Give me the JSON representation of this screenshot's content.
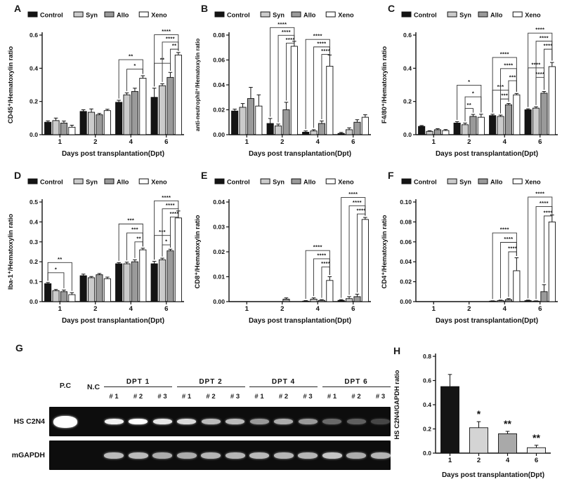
{
  "series_legend": [
    {
      "label": "Control",
      "fill": "#141414"
    },
    {
      "label": "Syn",
      "fill": "#cbcbcb"
    },
    {
      "label": "Allo",
      "fill": "#9a9a9a"
    },
    {
      "label": "Xeno",
      "fill": "#ffffff"
    }
  ],
  "chart_data": [
    {
      "id": "A",
      "letter": "A",
      "type": "bar",
      "title": "",
      "ylabel": "CD45⁺/Hematoxylin ratio",
      "xlabel": "Days post transplantation(Dpt)",
      "categories": [
        "1",
        "2",
        "4",
        "6"
      ],
      "ylim": [
        0,
        0.6
      ],
      "yticks": [
        0,
        0.2,
        0.4,
        0.6
      ],
      "ytick_labels": [
        "0.0",
        "0.2",
        "0.4",
        "0.6"
      ],
      "legend_position": "top",
      "grid": false,
      "series": [
        {
          "name": "Control",
          "values": [
            0.075,
            0.14,
            0.195,
            0.225
          ],
          "errors": [
            0.008,
            0.01,
            0.012,
            0.055
          ]
        },
        {
          "name": "Syn",
          "values": [
            0.085,
            0.135,
            0.24,
            0.295
          ],
          "errors": [
            0.015,
            0.02,
            0.012,
            0.012
          ]
        },
        {
          "name": "Allo",
          "values": [
            0.07,
            0.12,
            0.26,
            0.345
          ],
          "errors": [
            0.012,
            0.008,
            0.02,
            0.03
          ]
        },
        {
          "name": "Xeno",
          "values": [
            0.045,
            0.145,
            0.34,
            0.48
          ],
          "errors": [
            0.012,
            0.008,
            0.015,
            0.015
          ]
        }
      ],
      "significance": [
        {
          "day": 2,
          "from": 1,
          "to": 3,
          "y": 0.395,
          "label": "*"
        },
        {
          "day": 2,
          "from": 0,
          "to": 3,
          "y": 0.452,
          "label": "**"
        },
        {
          "day": 3,
          "from": 0,
          "to": 2,
          "y": 0.43,
          "label": "**"
        },
        {
          "day": 3,
          "from": 2,
          "to": 3,
          "y": 0.515,
          "label": "**"
        },
        {
          "day": 3,
          "from": 1,
          "to": 3,
          "y": 0.558,
          "label": "****"
        },
        {
          "day": 3,
          "from": 0,
          "to": 3,
          "y": 0.602,
          "label": "****"
        }
      ]
    },
    {
      "id": "B",
      "letter": "B",
      "type": "bar",
      "title": "",
      "ylabel": "anti-neutrophil⁺/Hematoxylin ratio",
      "xlabel": "Days post transplantation(Dpt)",
      "categories": [
        "1",
        "2",
        "4",
        "6"
      ],
      "ylim": [
        0,
        0.08
      ],
      "yticks": [
        0,
        0.02,
        0.04,
        0.06,
        0.08
      ],
      "ytick_labels": [
        "0.00",
        "0.02",
        "0.04",
        "0.06",
        "0.08"
      ],
      "legend_position": "top",
      "grid": false,
      "series": [
        {
          "name": "Control",
          "values": [
            0.019,
            0.009,
            0.002,
            0.001
          ],
          "errors": [
            0.0015,
            0.004,
            0.001,
            0.0008
          ]
        },
        {
          "name": "Syn",
          "values": [
            0.022,
            0.007,
            0.003,
            0.004
          ],
          "errors": [
            0.003,
            0.0015,
            0.001,
            0.0015
          ]
        },
        {
          "name": "Allo",
          "values": [
            0.029,
            0.02,
            0.009,
            0.01
          ],
          "errors": [
            0.009,
            0.006,
            0.002,
            0.002
          ]
        },
        {
          "name": "Xeno",
          "values": [
            0.023,
            0.071,
            0.055,
            0.014
          ],
          "errors": [
            0.009,
            0.004,
            0.009,
            0.002
          ]
        }
      ],
      "significance": [
        {
          "day": 1,
          "from": 2,
          "to": 3,
          "y": 0.0735,
          "label": "****"
        },
        {
          "day": 1,
          "from": 1,
          "to": 3,
          "y": 0.0798,
          "label": "****"
        },
        {
          "day": 1,
          "from": 0,
          "to": 3,
          "y": 0.086,
          "label": "****"
        },
        {
          "day": 2,
          "from": 2,
          "to": 3,
          "y": 0.0645,
          "label": "****"
        },
        {
          "day": 2,
          "from": 1,
          "to": 3,
          "y": 0.0705,
          "label": "****"
        },
        {
          "day": 2,
          "from": 0,
          "to": 3,
          "y": 0.0765,
          "label": "****"
        }
      ]
    },
    {
      "id": "C",
      "letter": "C",
      "type": "bar",
      "title": "",
      "ylabel": "F4/80⁺/Hematoxylin ratio",
      "xlabel": "Days post transplantation(Dpt)",
      "categories": [
        "1",
        "2",
        "4",
        "6"
      ],
      "ylim": [
        0,
        0.6
      ],
      "yticks": [
        0,
        0.2,
        0.4,
        0.6
      ],
      "ytick_labels": [
        "0.0",
        "0.2",
        "0.4",
        "0.6"
      ],
      "legend_position": "top",
      "grid": false,
      "series": [
        {
          "name": "Control",
          "values": [
            0.05,
            0.07,
            0.115,
            0.15
          ],
          "errors": [
            0.005,
            0.008,
            0.008,
            0.006
          ]
        },
        {
          "name": "Syn",
          "values": [
            0.02,
            0.06,
            0.11,
            0.16
          ],
          "errors": [
            0.004,
            0.01,
            0.008,
            0.008
          ]
        },
        {
          "name": "Allo",
          "values": [
            0.03,
            0.11,
            0.18,
            0.25
          ],
          "errors": [
            0.006,
            0.012,
            0.008,
            0.01
          ]
        },
        {
          "name": "Xeno",
          "values": [
            0.025,
            0.105,
            0.24,
            0.41
          ],
          "errors": [
            0.006,
            0.018,
            0.008,
            0.025
          ]
        }
      ],
      "significance": [
        {
          "day": 1,
          "from": 1,
          "to": 2,
          "y": 0.158,
          "label": "**"
        },
        {
          "day": 1,
          "from": 1,
          "to": 3,
          "y": 0.228,
          "label": "*"
        },
        {
          "day": 1,
          "from": 0,
          "to": 3,
          "y": 0.298,
          "label": "*"
        },
        {
          "day": 2,
          "from": 1,
          "to": 2,
          "y": 0.215,
          "label": "***"
        },
        {
          "day": 2,
          "from": 0,
          "to": 2,
          "y": 0.268,
          "label": "***"
        },
        {
          "day": 2,
          "from": 2,
          "to": 3,
          "y": 0.325,
          "label": "***"
        },
        {
          "day": 2,
          "from": 1,
          "to": 3,
          "y": 0.398,
          "label": "****"
        },
        {
          "day": 2,
          "from": 0,
          "to": 3,
          "y": 0.465,
          "label": "****"
        },
        {
          "day": 3,
          "from": 1,
          "to": 2,
          "y": 0.345,
          "label": "****"
        },
        {
          "day": 3,
          "from": 0,
          "to": 2,
          "y": 0.402,
          "label": "****"
        },
        {
          "day": 3,
          "from": 2,
          "to": 3,
          "y": 0.515,
          "label": "****"
        },
        {
          "day": 3,
          "from": 1,
          "to": 3,
          "y": 0.563,
          "label": "****"
        },
        {
          "day": 3,
          "from": 0,
          "to": 3,
          "y": 0.612,
          "label": "****"
        }
      ]
    },
    {
      "id": "D",
      "letter": "D",
      "type": "bar",
      "title": "",
      "ylabel": "Iba-1⁺/Hematoxylin ratio",
      "xlabel": "Days post transplantation(Dpt)",
      "categories": [
        "1",
        "2",
        "4",
        "6"
      ],
      "ylim": [
        0,
        0.5
      ],
      "yticks": [
        0,
        0.1,
        0.2,
        0.3,
        0.4,
        0.5
      ],
      "ytick_labels": [
        "0.0",
        "0.1",
        "0.2",
        "0.3",
        "0.4",
        "0.5"
      ],
      "legend_position": "top",
      "grid": false,
      "series": [
        {
          "name": "Control",
          "values": [
            0.09,
            0.13,
            0.19,
            0.19
          ],
          "errors": [
            0.006,
            0.008,
            0.006,
            0.012
          ]
        },
        {
          "name": "Syn",
          "values": [
            0.055,
            0.12,
            0.19,
            0.21
          ],
          "errors": [
            0.006,
            0.006,
            0.008,
            0.008
          ]
        },
        {
          "name": "Allo",
          "values": [
            0.05,
            0.135,
            0.2,
            0.255
          ],
          "errors": [
            0.008,
            0.006,
            0.01,
            0.008
          ]
        },
        {
          "name": "Xeno",
          "values": [
            0.035,
            0.115,
            0.26,
            0.42
          ],
          "errors": [
            0.01,
            0.008,
            0.008,
            0.035
          ]
        }
      ],
      "significance": [
        {
          "day": 0,
          "from": 0,
          "to": 2,
          "y": 0.145,
          "label": "*"
        },
        {
          "day": 0,
          "from": 0,
          "to": 3,
          "y": 0.196,
          "label": "**"
        },
        {
          "day": 2,
          "from": 2,
          "to": 3,
          "y": 0.3,
          "label": "**"
        },
        {
          "day": 2,
          "from": 1,
          "to": 3,
          "y": 0.345,
          "label": "***"
        },
        {
          "day": 2,
          "from": 0,
          "to": 3,
          "y": 0.39,
          "label": "***"
        },
        {
          "day": 3,
          "from": 1,
          "to": 2,
          "y": 0.285,
          "label": "*"
        },
        {
          "day": 3,
          "from": 0,
          "to": 2,
          "y": 0.332,
          "label": "***"
        },
        {
          "day": 3,
          "from": 2,
          "to": 3,
          "y": 0.425,
          "label": "****"
        },
        {
          "day": 3,
          "from": 1,
          "to": 3,
          "y": 0.466,
          "label": "****"
        },
        {
          "day": 3,
          "from": 0,
          "to": 3,
          "y": 0.506,
          "label": "****"
        }
      ]
    },
    {
      "id": "E",
      "letter": "E",
      "type": "bar",
      "title": "",
      "ylabel": "CD8⁺/Hematoxylin ratio",
      "xlabel": "Days post transplantation(Dpt)",
      "categories": [
        "1",
        "2",
        "4",
        "6"
      ],
      "ylim": [
        0,
        0.04
      ],
      "yticks": [
        0,
        0.01,
        0.02,
        0.03,
        0.04
      ],
      "ytick_labels": [
        "0.00",
        "0.01",
        "0.02",
        "0.03",
        "0.04"
      ],
      "legend_position": "top",
      "grid": false,
      "series": [
        {
          "name": "Control",
          "values": [
            0,
            0,
            0.0002,
            0.0005
          ],
          "errors": [
            0,
            0,
            0.0002,
            0.0003
          ]
        },
        {
          "name": "Syn",
          "values": [
            0,
            0,
            0.001,
            0.0012
          ],
          "errors": [
            0,
            0,
            0.0005,
            0.0008
          ]
        },
        {
          "name": "Allo",
          "values": [
            0,
            0.001,
            0.0005,
            0.002
          ],
          "errors": [
            0,
            0.0005,
            0.0003,
            0.001
          ]
        },
        {
          "name": "Xeno",
          "values": [
            0,
            0,
            0.0085,
            0.033
          ],
          "errors": [
            0,
            0,
            0.0015,
            0.0008
          ]
        }
      ],
      "significance": [
        {
          "day": 2,
          "from": 2,
          "to": 3,
          "y": 0.0139,
          "label": "****"
        },
        {
          "day": 2,
          "from": 1,
          "to": 3,
          "y": 0.0172,
          "label": "****"
        },
        {
          "day": 2,
          "from": 0,
          "to": 3,
          "y": 0.0205,
          "label": "****"
        },
        {
          "day": 3,
          "from": 2,
          "to": 3,
          "y": 0.0352,
          "label": "****"
        },
        {
          "day": 3,
          "from": 1,
          "to": 3,
          "y": 0.0385,
          "label": "****"
        },
        {
          "day": 3,
          "from": 0,
          "to": 3,
          "y": 0.0418,
          "label": "****"
        }
      ]
    },
    {
      "id": "F",
      "letter": "F",
      "type": "bar",
      "title": "",
      "ylabel": "CD4⁺/Hematoxylin ratio",
      "xlabel": "Days post transplantation(Dpt)",
      "categories": [
        "1",
        "2",
        "4",
        "6"
      ],
      "ylim": [
        0,
        0.1
      ],
      "yticks": [
        0,
        0.02,
        0.04,
        0.06,
        0.08,
        0.1
      ],
      "ytick_labels": [
        "0.00",
        "0.02",
        "0.04",
        "0.06",
        "0.08",
        "0.10"
      ],
      "legend_position": "top",
      "grid": false,
      "series": [
        {
          "name": "Control",
          "values": [
            0,
            0,
            0.0005,
            0.001
          ],
          "errors": [
            0,
            0,
            0.0003,
            0.0005
          ]
        },
        {
          "name": "Syn",
          "values": [
            0,
            0,
            0.001,
            0.0005
          ],
          "errors": [
            0,
            0,
            0.0005,
            0.0003
          ]
        },
        {
          "name": "Allo",
          "values": [
            0,
            0,
            0.002,
            0.01
          ],
          "errors": [
            0,
            0,
            0.001,
            0.007
          ]
        },
        {
          "name": "Xeno",
          "values": [
            0,
            0,
            0.031,
            0.08
          ],
          "errors": [
            0,
            0,
            0.013,
            0.007
          ]
        }
      ],
      "significance": [
        {
          "day": 2,
          "from": 2,
          "to": 3,
          "y": 0.05,
          "label": "****"
        },
        {
          "day": 2,
          "from": 1,
          "to": 3,
          "y": 0.0595,
          "label": "****"
        },
        {
          "day": 2,
          "from": 0,
          "to": 3,
          "y": 0.069,
          "label": "****"
        },
        {
          "day": 3,
          "from": 2,
          "to": 3,
          "y": 0.086,
          "label": "****"
        },
        {
          "day": 3,
          "from": 1,
          "to": 3,
          "y": 0.0955,
          "label": "****"
        },
        {
          "day": 3,
          "from": 0,
          "to": 3,
          "y": 0.105,
          "label": "****"
        }
      ]
    },
    {
      "id": "H",
      "letter": "H",
      "type": "bar",
      "title": "",
      "ylabel": "HS C2N4/GAPDH ratio",
      "xlabel": "Days post transplantation(Dpt)",
      "categories": [
        "1",
        "2",
        "4",
        "6"
      ],
      "ylim": [
        0,
        0.8
      ],
      "yticks": [
        0,
        0.2,
        0.4,
        0.6,
        0.8
      ],
      "ytick_labels": [
        "0.0",
        "0.2",
        "0.4",
        "0.6",
        "0.8"
      ],
      "legend_position": "none",
      "grid": false,
      "series": [
        {
          "name": "HS C2N4/GAPDH",
          "values": [
            0.55,
            0.21,
            0.16,
            0.045
          ],
          "errors": [
            0.1,
            0.05,
            0.02,
            0.02
          ]
        }
      ],
      "bar_colors": [
        "#141414",
        "#d4d4d4",
        "#a9a9a9",
        "#ededed"
      ],
      "annotations": [
        {
          "day": 1,
          "label": "*"
        },
        {
          "day": 2,
          "label": "**"
        },
        {
          "day": 3,
          "label": "**"
        }
      ],
      "significance": []
    }
  ],
  "gel": {
    "letter": "G",
    "row_labels": [
      "HS C2N4",
      "mGAPDH"
    ],
    "control_lanes": [
      "P.C",
      "N.C"
    ],
    "groups": [
      {
        "label": "DPT 1",
        "replicates": [
          "# 1",
          "# 2",
          "# 3"
        ]
      },
      {
        "label": "DPT 2",
        "replicates": [
          "# 1",
          "# 2",
          "# 3"
        ]
      },
      {
        "label": "DPT 4",
        "replicates": [
          "# 1",
          "# 2",
          "# 3"
        ]
      },
      {
        "label": "DPT 6",
        "replicates": [
          "# 1",
          "# 2",
          "# 3"
        ]
      }
    ],
    "band_intensity": {
      "hs_c2n4_pc": 1.0,
      "hs_c2n4_nc": 0,
      "hs_c2n4_samples": [
        0.95,
        1.0,
        0.9,
        0.85,
        0.72,
        0.72,
        0.58,
        0.66,
        0.58,
        0.38,
        0.34,
        0.24
      ],
      "mgapdh_pc": 0,
      "mgapdh_nc": 0,
      "mgapdh_samples": [
        0.72,
        0.72,
        0.66,
        0.66,
        0.7,
        0.7,
        0.72,
        0.7,
        0.7,
        0.76,
        0.66,
        0.7
      ]
    }
  }
}
